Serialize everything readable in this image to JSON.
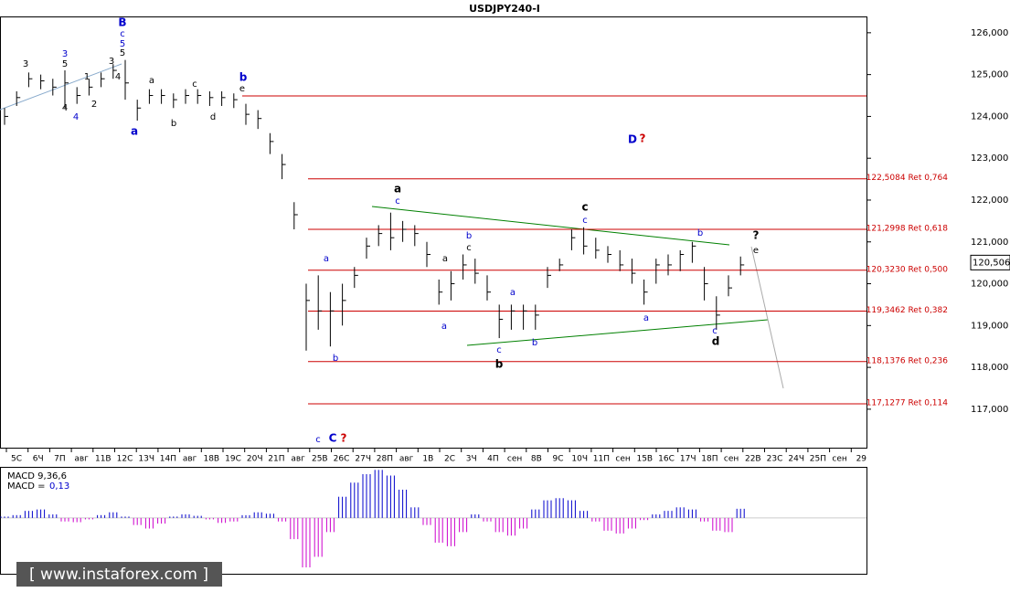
{
  "chart_data": {
    "type": "ohlc",
    "title": "USDJPY240-I",
    "ylim": [
      116.08,
      126.39
    ],
    "yticks": [
      {
        "value": 126,
        "label": "126,000"
      },
      {
        "value": 125,
        "label": "125,000"
      },
      {
        "value": 124,
        "label": "124,000"
      },
      {
        "value": 123,
        "label": "123,000"
      },
      {
        "value": 122,
        "label": "122,000"
      },
      {
        "value": 121,
        "label": "121,000"
      },
      {
        "value": 120,
        "label": "120,000"
      },
      {
        "value": 119,
        "label": "119,000"
      },
      {
        "value": 118,
        "label": "118,000"
      },
      {
        "value": 117,
        "label": "117,000"
      }
    ],
    "x_labels": [
      "5С",
      "6Ч",
      "7П",
      "авг",
      "11В",
      "12С",
      "13Ч",
      "14П",
      "авг",
      "18В",
      "19С",
      "20Ч",
      "21П",
      "авг",
      "25В",
      "26С",
      "27Ч",
      "28П",
      "авг",
      "1В",
      "2С",
      "3Ч",
      "4П",
      "сен",
      "8В",
      "9С",
      "10Ч",
      "11П",
      "сен",
      "15В",
      "16С",
      "17Ч",
      "18П",
      "сен",
      "22В",
      "23С",
      "24Ч",
      "25П",
      "сен",
      "29"
    ],
    "color": "#000000",
    "high": [
      124.2,
      124.6,
      125.05,
      125.0,
      124.9,
      125.1,
      124.7,
      124.9,
      125.05,
      125.25,
      125.35,
      124.4,
      124.65,
      124.65,
      124.55,
      124.65,
      124.65,
      124.6,
      124.6,
      124.55,
      124.3,
      124.15,
      123.6,
      123.1,
      121.95,
      120.0,
      120.2,
      119.8,
      120.0,
      120.4,
      121.1,
      121.4,
      121.7,
      121.5,
      121.4,
      121.0,
      120.1,
      120.3,
      120.7,
      120.6,
      120.2,
      119.5,
      119.5,
      119.5,
      119.5,
      120.4,
      120.6,
      121.3,
      121.35,
      121.1,
      120.9,
      120.8,
      120.6,
      120.1,
      120.6,
      120.7,
      120.8,
      121.0,
      120.4,
      119.7,
      120.2,
      120.65
    ],
    "low": [
      123.8,
      124.25,
      124.7,
      124.65,
      124.5,
      124.2,
      124.3,
      124.5,
      124.7,
      124.9,
      124.4,
      123.9,
      124.3,
      124.3,
      124.2,
      124.3,
      124.3,
      124.25,
      124.25,
      124.2,
      123.8,
      123.7,
      123.1,
      122.5,
      121.3,
      118.4,
      118.9,
      118.5,
      119.0,
      119.9,
      120.6,
      120.9,
      120.8,
      121.0,
      120.9,
      120.4,
      119.5,
      119.6,
      120.1,
      120.0,
      119.6,
      118.7,
      118.9,
      118.9,
      118.9,
      119.9,
      120.3,
      120.8,
      120.7,
      120.6,
      120.5,
      120.3,
      120.0,
      119.5,
      120.0,
      120.2,
      120.3,
      120.5,
      119.6,
      118.9,
      119.7,
      120.2
    ],
    "close": [
      124.0,
      124.45,
      124.9,
      124.85,
      124.7,
      124.8,
      124.5,
      124.7,
      124.9,
      125.1,
      124.8,
      124.2,
      124.5,
      124.5,
      124.4,
      124.5,
      124.5,
      124.45,
      124.45,
      124.4,
      124.05,
      123.95,
      123.4,
      122.85,
      121.65,
      119.6,
      119.35,
      119.35,
      119.6,
      120.2,
      120.9,
      121.2,
      121.1,
      121.3,
      121.2,
      120.7,
      119.8,
      120.0,
      120.45,
      120.25,
      119.8,
      119.15,
      119.35,
      119.35,
      119.25,
      120.2,
      120.45,
      121.1,
      120.9,
      120.8,
      120.7,
      120.45,
      120.25,
      119.8,
      120.45,
      120.45,
      120.7,
      120.9,
      120.0,
      119.25,
      119.9,
      120.45
    ],
    "levels": [
      {
        "value": 124.49
      },
      {
        "value": 122.5084,
        "label": "122,5084 Ret 0,764"
      },
      {
        "value": 121.2998,
        "label": "121,2998 Ret 0,618"
      },
      {
        "value": 120.323,
        "label": "120,3230 Ret 0,500"
      },
      {
        "value": 119.3462,
        "label": "119,3462 Ret 0,382"
      },
      {
        "value": 118.1376,
        "label": "118,1376 Ret 0,236"
      },
      {
        "value": 117.1277,
        "label": "117,1277 Ret 0,114"
      }
    ],
    "level_color": "#cc0000",
    "last_price": {
      "value": 120.506,
      "label": "120,506"
    },
    "annotations": [
      {
        "text": "B",
        "color": "#0000cc"
      },
      {
        "text": "c",
        "color": "#0000cc"
      },
      {
        "text": "5",
        "color": "#0000cc"
      },
      {
        "text": "5",
        "color": "#000000"
      },
      {
        "text": "3",
        "color": "#000000"
      },
      {
        "text": "3",
        "color": "#0000cc"
      },
      {
        "text": "5",
        "color": "#000000"
      },
      {
        "text": "3",
        "color": "#000000"
      },
      {
        "text": "1",
        "color": "#000000"
      },
      {
        "text": "4",
        "color": "#000000"
      },
      {
        "text": "2",
        "color": "#000000"
      },
      {
        "text": "4",
        "color": "#000000"
      },
      {
        "text": "4",
        "color": "#0000cc"
      },
      {
        "text": "a",
        "color": "#0000cc"
      },
      {
        "text": "a",
        "color": "#000000"
      },
      {
        "text": "b",
        "color": "#000000"
      },
      {
        "text": "c",
        "color": "#000000"
      },
      {
        "text": "d",
        "color": "#000000"
      },
      {
        "text": "b",
        "color": "#0000cc"
      },
      {
        "text": "e",
        "color": "#000000"
      },
      {
        "text": "a",
        "color": "#000000"
      },
      {
        "text": "c",
        "color": "#0000cc"
      },
      {
        "text": "a",
        "color": "#0000cc"
      },
      {
        "text": "b",
        "color": "#0000cc"
      },
      {
        "text": "b",
        "color": "#0000cc"
      },
      {
        "text": "c",
        "color": "#000000"
      },
      {
        "text": "a",
        "color": "#000000"
      },
      {
        "text": "a",
        "color": "#0000cc"
      },
      {
        "text": "a",
        "color": "#0000cc"
      },
      {
        "text": "c",
        "color": "#0000cc"
      },
      {
        "text": "b",
        "color": "#000000"
      },
      {
        "text": "b",
        "color": "#0000cc"
      },
      {
        "text": "c",
        "color": "#000000"
      },
      {
        "text": "c",
        "color": "#0000cc"
      },
      {
        "text": "a",
        "color": "#0000cc"
      },
      {
        "text": "b",
        "color": "#0000cc"
      },
      {
        "text": "c",
        "color": "#0000cc"
      },
      {
        "text": "d",
        "color": "#000000"
      },
      {
        "text": "?",
        "color": "#000000"
      },
      {
        "text": "e",
        "color": "#000000"
      },
      {
        "text": "D",
        "color": "#0000cc"
      },
      {
        "text": "?",
        "color": "#cc0000"
      },
      {
        "text": "c",
        "color": "#0000cc"
      },
      {
        "text": "C",
        "color": "#0000cc"
      },
      {
        "text": "?",
        "color": "#cc0000"
      }
    ],
    "macd": {
      "title": "MACD 9,36,6",
      "label": "MACD =",
      "value_label": "0,13",
      "ylim": [
        -0.79,
        0.71
      ],
      "positive_color": "#0000cc",
      "negative_color": "#cc00cc",
      "values": [
        0.02,
        0.04,
        0.1,
        0.12,
        0.05,
        -0.05,
        -0.06,
        -0.02,
        0.04,
        0.08,
        0.02,
        -0.1,
        -0.15,
        -0.08,
        0.02,
        0.05,
        0.03,
        -0.02,
        -0.07,
        -0.05,
        0.04,
        0.08,
        0.06,
        -0.05,
        -0.3,
        -0.7,
        -0.55,
        -0.2,
        0.3,
        0.5,
        0.62,
        0.68,
        0.6,
        0.4,
        0.15,
        -0.1,
        -0.35,
        -0.4,
        -0.2,
        0.05,
        -0.05,
        -0.2,
        -0.25,
        -0.15,
        0.12,
        0.25,
        0.28,
        0.25,
        0.1,
        -0.05,
        -0.18,
        -0.22,
        -0.15,
        -0.03,
        0.05,
        0.1,
        0.15,
        0.12,
        -0.05,
        -0.18,
        -0.2,
        0.13
      ]
    },
    "watermark": "[ www.instaforex.com ]"
  }
}
